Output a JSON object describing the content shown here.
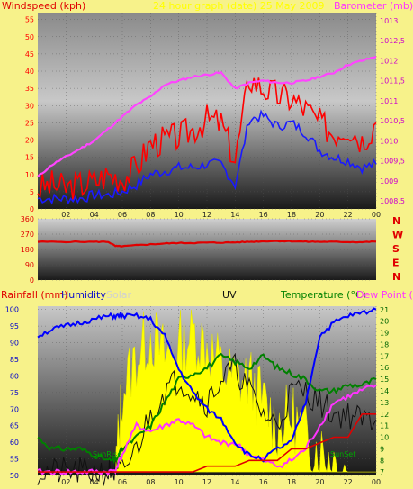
{
  "colors": {
    "background": "#f7f28a",
    "windspeed": "#ff0000",
    "barometer": "#ff44ff",
    "wind_avg": "#1a1aff",
    "wind_dir": "#e00000",
    "humidity": "#0000ff",
    "solar": "#ffff00",
    "uv": "#111111",
    "temperature": "#008000",
    "dew_point": "#ff33ff",
    "rainfall": "#e00000",
    "sun_marker": "#00aa00"
  },
  "chart_data": [
    {
      "type": "line",
      "subtitle": "24 hour graph (date) 25 May 2009",
      "left_axis_label": "Windspeed (kph)",
      "right_axis_label": "Barometer (mb)",
      "x_ticks": [
        "02",
        "04",
        "06",
        "08",
        "10",
        "12",
        "14",
        "16",
        "18",
        "20",
        "22",
        "00"
      ],
      "left_ticks": [
        "0",
        "5",
        "10",
        "15",
        "20",
        "25",
        "30",
        "35",
        "40",
        "45",
        "50",
        "55"
      ],
      "right_ticks": [
        "1008,5",
        "1009",
        "1009,5",
        "1010",
        "1010,5",
        "1011",
        "1011,5",
        "1012",
        "1012,5",
        "1013"
      ],
      "ylim_left": [
        0,
        57
      ],
      "ylim_right": [
        1008.3,
        1013.2
      ],
      "x": [
        0,
        1,
        2,
        3,
        4,
        5,
        6,
        7,
        8,
        9,
        10,
        11,
        12,
        13,
        14,
        15,
        16,
        17,
        18,
        19,
        20,
        21,
        22,
        23,
        24
      ],
      "series": [
        {
          "key": "barometer",
          "axis": "right",
          "values": [
            1009.1,
            1009.4,
            1009.6,
            1009.8,
            1010.0,
            1010.3,
            1010.6,
            1010.9,
            1011.1,
            1011.4,
            1011.5,
            1011.6,
            1011.65,
            1011.7,
            1011.3,
            1011.45,
            1011.5,
            1011.45,
            1011.45,
            1011.5,
            1011.6,
            1011.7,
            1011.9,
            1012.0,
            1012.1
          ]
        },
        {
          "key": "windspeed",
          "axis": "left",
          "values": [
            6,
            7,
            6,
            7,
            8,
            10,
            9,
            12,
            19,
            20,
            21,
            23,
            26,
            25,
            14,
            38,
            35,
            33,
            32,
            29,
            25,
            22,
            24,
            20,
            25
          ]
        },
        {
          "key": "wind_avg",
          "axis": "left",
          "values": [
            3,
            3,
            3,
            3,
            4,
            4,
            5,
            7,
            10,
            11,
            12,
            12,
            13,
            13,
            7,
            26,
            27,
            24,
            25,
            22,
            17,
            15,
            14,
            12,
            13
          ]
        }
      ]
    },
    {
      "type": "line",
      "direction_labels": [
        "N",
        "W",
        "S",
        "E",
        "N"
      ],
      "y_ticks": [
        "360",
        "270",
        "180",
        "90",
        "0"
      ],
      "ylim": [
        0,
        360
      ],
      "x": [
        0,
        2,
        4,
        5,
        5.5,
        6,
        7,
        8,
        9,
        10,
        11,
        12,
        13,
        14,
        15,
        16,
        17,
        18,
        19,
        20,
        21,
        22,
        23,
        24
      ],
      "series": [
        {
          "key": "wind_dir",
          "values": [
            225,
            225,
            225,
            225,
            200,
            198,
            205,
            210,
            215,
            218,
            218,
            220,
            220,
            222,
            225,
            228,
            230,
            228,
            226,
            225,
            225,
            224,
            223,
            226
          ]
        }
      ]
    },
    {
      "type": "line",
      "labels": {
        "rainfall": "Rainfall (mm)",
        "humidity": "Humidity",
        "solar": "Solar",
        "uv": "UV",
        "temperature": "Temperature (°C)",
        "dew_point": "Dew Point (°C)"
      },
      "x_ticks": [
        "02",
        "04",
        "06",
        "08",
        "10",
        "12",
        "14",
        "16",
        "18",
        "20",
        "22",
        "00"
      ],
      "left_ticks": [
        "50",
        "55",
        "60",
        "65",
        "70",
        "75",
        "80",
        "85",
        "90",
        "95",
        "100"
      ],
      "right_ticks": [
        "7",
        "8",
        "9",
        "10",
        "11",
        "12",
        "13",
        "14",
        "15",
        "16",
        "17",
        "18",
        "19",
        "20",
        "21"
      ],
      "ylim_left": [
        50,
        101
      ],
      "ylim_right": [
        6.7,
        21.3
      ],
      "sun_markers": {
        "sunrise_label": "SunRise",
        "sunset_label": "SunSet",
        "sunrise_hour": 5.3,
        "sunset_hour": 21.0
      },
      "x_hours": [
        0,
        1,
        2,
        3,
        4,
        5,
        5.5,
        6,
        7,
        8,
        9,
        10,
        11,
        12,
        13,
        14,
        15,
        16,
        17,
        18,
        19,
        20,
        21,
        22,
        23,
        24
      ],
      "series": [
        {
          "key": "humidity",
          "axis": "left",
          "values": [
            92,
            94,
            95,
            96,
            97,
            98,
            98,
            98,
            98,
            97,
            92,
            82,
            75,
            70,
            67,
            60,
            56,
            55,
            58,
            60,
            72,
            92,
            96,
            98,
            99,
            100
          ]
        },
        {
          "key": "temperature",
          "axis": "right",
          "values": [
            10,
            9,
            9,
            9,
            8.5,
            8,
            8,
            9,
            10,
            11,
            13,
            15,
            15.5,
            16,
            17,
            16.5,
            16,
            17,
            16,
            15.5,
            15,
            14,
            14,
            14.5,
            14.5,
            15
          ]
        },
        {
          "key": "dew_point",
          "axis": "right",
          "values": [
            7,
            7,
            7,
            7,
            7,
            7,
            7.2,
            8.5,
            11,
            10.5,
            11,
            11.5,
            11,
            10,
            9.5,
            9.5,
            8.5,
            8,
            7.5,
            8,
            9,
            11,
            13,
            13.5,
            14,
            14.5
          ]
        },
        {
          "key": "uv",
          "axis": "right",
          "values": [
            7,
            7,
            7,
            7,
            7,
            7,
            7,
            7,
            9,
            12,
            14,
            15,
            14,
            13,
            15,
            16,
            14,
            12,
            11,
            14,
            14,
            13,
            12,
            12,
            11.5,
            11.5
          ]
        },
        {
          "key": "solar",
          "axis": "right",
          "values": [
            7,
            7,
            7,
            7,
            7,
            7,
            7,
            14,
            17,
            19,
            17,
            18,
            19,
            18,
            16,
            15,
            15,
            13,
            11,
            12,
            10,
            9,
            8,
            7,
            7,
            7
          ]
        },
        {
          "key": "rainfall",
          "axis": "right",
          "values": [
            7,
            7,
            7,
            7,
            7,
            7,
            7,
            7,
            7,
            7,
            7,
            7,
            7,
            7.5,
            7.5,
            7.5,
            8,
            8,
            8,
            9,
            9,
            9.5,
            10,
            10,
            12,
            12
          ]
        }
      ]
    }
  ]
}
